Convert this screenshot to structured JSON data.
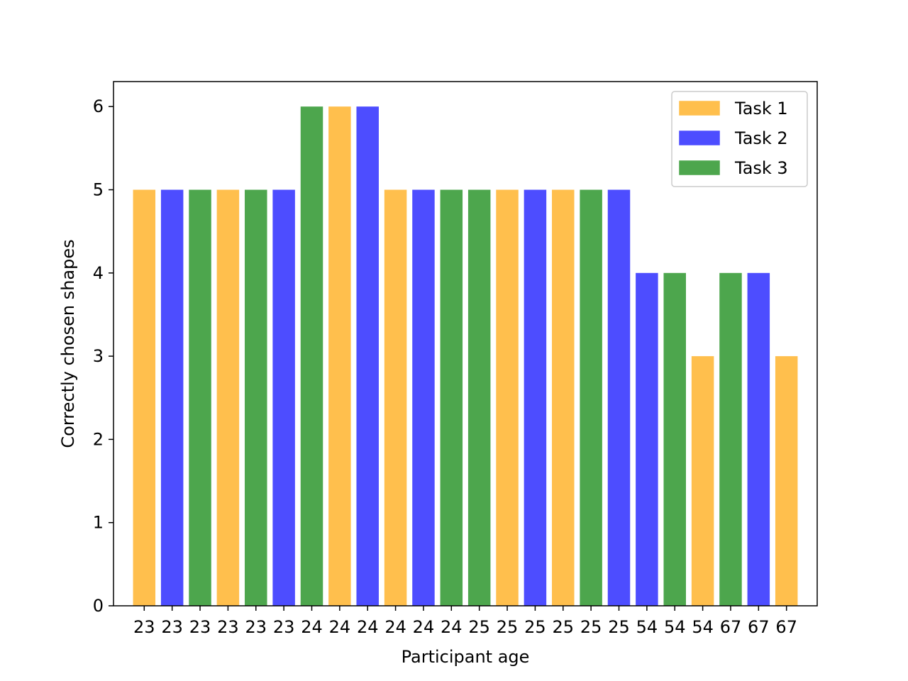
{
  "chart_data": {
    "type": "bar",
    "title": "",
    "xlabel": "Participant age",
    "ylabel": "Correctly chosen shapes",
    "ylim": [
      0,
      6.3
    ],
    "yticks": [
      0,
      1,
      2,
      3,
      4,
      5,
      6
    ],
    "grid": false,
    "legend_position": "top-right",
    "categories": [
      "23",
      "23",
      "23",
      "23",
      "23",
      "23",
      "24",
      "24",
      "24",
      "24",
      "24",
      "24",
      "25",
      "25",
      "25",
      "25",
      "25",
      "25",
      "54",
      "54",
      "54",
      "67",
      "67",
      "67"
    ],
    "values": [
      5,
      5,
      5,
      5,
      5,
      5,
      6,
      6,
      6,
      5,
      5,
      5,
      5,
      5,
      5,
      5,
      5,
      5,
      4,
      4,
      3,
      4,
      4,
      3
    ],
    "bar_series": [
      0,
      1,
      2,
      0,
      2,
      1,
      2,
      0,
      1,
      0,
      1,
      2,
      2,
      0,
      1,
      0,
      2,
      1,
      1,
      2,
      0,
      2,
      1,
      0
    ],
    "series": [
      {
        "name": "Task 1",
        "color": "#FFBF4D"
      },
      {
        "name": "Task 2",
        "color": "#4D4DFF"
      },
      {
        "name": "Task 3",
        "color": "#4DA64D"
      }
    ]
  }
}
